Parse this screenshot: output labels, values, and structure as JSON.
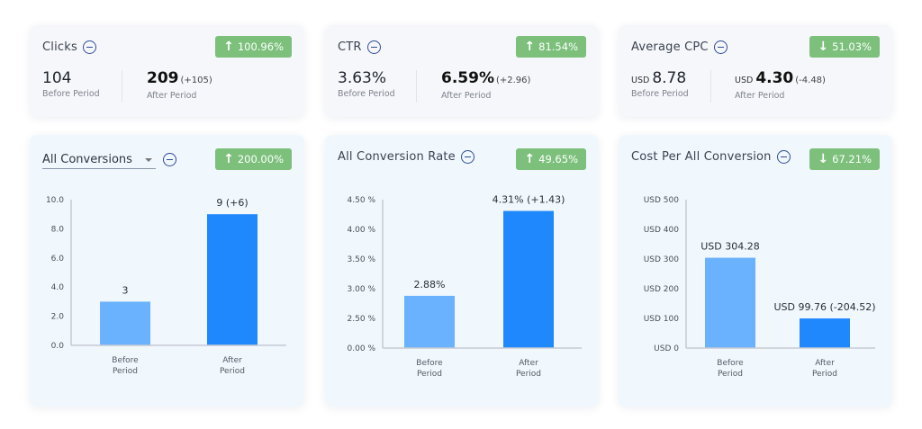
{
  "colors": {
    "badge_bg": "#7cc07c",
    "bar_before": "#6ab2fd",
    "bar_after": "#1e88fc",
    "axis": "#c5cad3",
    "icon": "#2e4d9a"
  },
  "kpis": [
    {
      "title": "Clicks",
      "badge": {
        "direction": "up",
        "arrow": "↑",
        "value": "100.96%"
      },
      "before": {
        "currency": "",
        "value": "104",
        "label": "Before Period"
      },
      "after": {
        "currency": "",
        "value": "209",
        "delta": "(+105)",
        "label": "After Period"
      }
    },
    {
      "title": "CTR",
      "badge": {
        "direction": "up",
        "arrow": "↑",
        "value": "81.54%"
      },
      "before": {
        "currency": "",
        "value": "3.63%",
        "label": "Before Period"
      },
      "after": {
        "currency": "",
        "value": "6.59%",
        "delta": "(+2.96)",
        "label": "After Period"
      }
    },
    {
      "title": "Average CPC",
      "badge": {
        "direction": "down",
        "arrow": "↓",
        "value": "51.03%"
      },
      "before": {
        "currency": "USD",
        "value": "8.78",
        "label": "Before Period"
      },
      "after": {
        "currency": "USD",
        "value": "4.30",
        "delta": "(-4.48)",
        "label": "After Period"
      }
    }
  ],
  "chart_cards": [
    {
      "title": "All Conversions",
      "is_dropdown": true,
      "badge": {
        "direction": "up",
        "arrow": "↑",
        "value": "200.00%"
      }
    },
    {
      "title": "All Conversion Rate",
      "is_dropdown": false,
      "badge": {
        "direction": "up",
        "arrow": "↑",
        "value": "49.65%"
      }
    },
    {
      "title": "Cost Per All Conversion",
      "is_dropdown": false,
      "badge": {
        "direction": "down",
        "arrow": "↓",
        "value": "67.21%"
      }
    }
  ],
  "chart_data": [
    {
      "type": "bar",
      "title": "All Conversions",
      "categories": [
        "Before Period",
        "After Period"
      ],
      "category_lines": [
        [
          "Before",
          "Period"
        ],
        [
          "After",
          "Period"
        ]
      ],
      "values": [
        3,
        9
      ],
      "data_labels": [
        "3",
        "9 (+6)"
      ],
      "yticks": [
        0,
        2,
        4,
        6,
        8,
        10
      ],
      "ytick_labels": [
        "0.0",
        "2.0",
        "4.0",
        "6.0",
        "8.0",
        "10.0"
      ],
      "ylim": [
        0,
        10
      ],
      "xlabel": "",
      "ylabel": "",
      "grid": false,
      "legend": "none"
    },
    {
      "type": "bar",
      "title": "All Conversion Rate",
      "categories": [
        "Before Period",
        "After Period"
      ],
      "category_lines": [
        [
          "Before",
          "Period"
        ],
        [
          "After",
          "Period"
        ]
      ],
      "values": [
        2.88,
        4.31
      ],
      "data_labels": [
        "2.88%",
        "4.31% (+1.43)"
      ],
      "yticks": [
        0,
        2.5,
        3.0,
        3.5,
        4.0,
        4.5
      ],
      "ytick_labels": [
        "0.00 %",
        "2.50 %",
        "3.00 %",
        "3.50 %",
        "4.00 %",
        "4.50 %"
      ],
      "ylim": [
        0,
        4.5
      ],
      "axis_note": "ticks evenly spaced (broken axis between 0 and 2.50)",
      "xlabel": "",
      "ylabel": "",
      "grid": false,
      "legend": "none"
    },
    {
      "type": "bar",
      "title": "Cost Per All Conversion",
      "categories": [
        "Before Period",
        "After Period"
      ],
      "category_lines": [
        [
          "Before",
          "Period"
        ],
        [
          "After",
          "Period"
        ]
      ],
      "values": [
        304.28,
        99.76
      ],
      "data_labels": [
        "USD 304.28",
        "USD 99.76 (-204.52)"
      ],
      "yticks": [
        0,
        100,
        200,
        300,
        400,
        500
      ],
      "ytick_labels": [
        "USD 0",
        "USD 100",
        "USD 200",
        "USD 300",
        "USD 400",
        "USD 500"
      ],
      "ylim": [
        0,
        500
      ],
      "xlabel": "",
      "ylabel": "",
      "grid": false,
      "legend": "none"
    }
  ]
}
